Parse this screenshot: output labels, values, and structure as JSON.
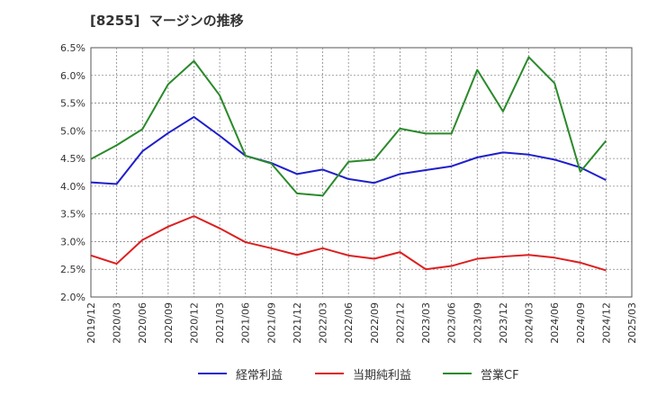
{
  "title": "[8255]  マージンの推移",
  "chart_data": {
    "type": "line",
    "title": "[8255]  マージンの推移",
    "x": [
      "2019/12",
      "2020/03",
      "2020/06",
      "2020/09",
      "2020/12",
      "2021/03",
      "2021/06",
      "2021/09",
      "2021/12",
      "2022/03",
      "2022/06",
      "2022/09",
      "2022/12",
      "2023/03",
      "2023/06",
      "2023/09",
      "2023/12",
      "2024/03",
      "2024/06",
      "2024/09",
      "2024/12",
      "2025/03"
    ],
    "y_ticks": [
      "2.0%",
      "2.5%",
      "3.0%",
      "3.5%",
      "4.0%",
      "4.5%",
      "5.0%",
      "5.5%",
      "6.0%",
      "6.5%"
    ],
    "ylim": [
      2.0,
      6.5
    ],
    "grid": true,
    "legend_position": "bottom",
    "series": [
      {
        "name": "経常利益",
        "color": "#1f1fcc",
        "values": [
          4.07,
          4.04,
          4.63,
          4.96,
          5.25,
          4.91,
          4.55,
          4.42,
          4.22,
          4.3,
          4.13,
          4.06,
          4.22,
          4.29,
          4.36,
          4.52,
          4.61,
          4.57,
          4.48,
          4.34,
          4.11,
          null
        ]
      },
      {
        "name": "当期純利益",
        "color": "#dd1f1f",
        "values": [
          2.75,
          2.6,
          3.03,
          3.27,
          3.46,
          3.24,
          2.99,
          2.88,
          2.76,
          2.88,
          2.75,
          2.69,
          2.81,
          2.5,
          2.56,
          2.69,
          2.73,
          2.76,
          2.71,
          2.62,
          2.48,
          null
        ]
      },
      {
        "name": "営業CF",
        "color": "#2a8a2a",
        "values": [
          4.49,
          4.74,
          5.03,
          5.84,
          6.26,
          5.64,
          4.55,
          4.41,
          3.87,
          3.83,
          4.44,
          4.48,
          5.04,
          4.95,
          4.95,
          6.1,
          5.35,
          6.33,
          5.86,
          4.26,
          4.82,
          null
        ]
      }
    ]
  }
}
